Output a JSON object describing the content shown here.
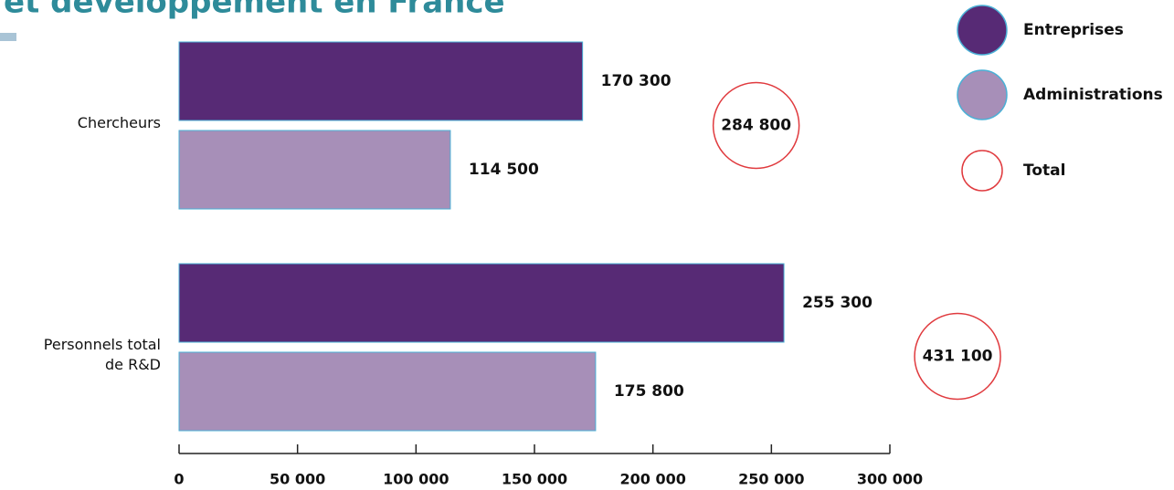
{
  "chart_data": {
    "type": "hbar",
    "title": "et développement en France",
    "categories": [
      "Chercheurs",
      "Personnels total\nde R&D"
    ],
    "series": [
      {
        "name": "Entreprises",
        "color": "#572a75",
        "values": [
          170300,
          255300
        ],
        "value_labels": [
          "170 300",
          "255 300"
        ]
      },
      {
        "name": "Administrations",
        "color": "#a78fb8",
        "values": [
          114500,
          175800
        ],
        "value_labels": [
          "114 500",
          "175 800"
        ]
      }
    ],
    "totals": {
      "name": "Total",
      "color": "#e03a3e",
      "values": [
        284800,
        431100
      ],
      "value_labels": [
        "284 800",
        "431 100"
      ]
    },
    "xlim": [
      0,
      300000
    ],
    "xticks": [
      0,
      {
        "value": 50000,
        "label": "50 000"
      },
      {
        "value": 100000,
        "label": "100 000"
      },
      {
        "value": 150000,
        "label": "150 000"
      },
      {
        "value": 200000,
        "label": "200 000"
      },
      {
        "value": 250000,
        "label": "250 000"
      },
      {
        "value": 300000,
        "label": "300 000"
      }
    ],
    "legend": "top-right"
  }
}
